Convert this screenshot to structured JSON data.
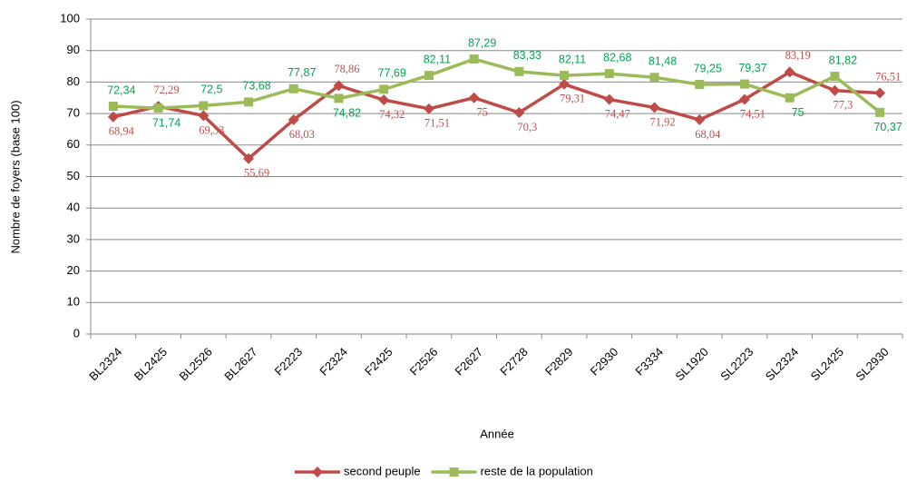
{
  "chart_data": {
    "type": "line",
    "x_label": "Année",
    "y_label": "Nombre de foyers (base 100)",
    "categories": [
      "BL2324",
      "BL2425",
      "BL2526",
      "BL2627",
      "F2223",
      "F2324",
      "F2425",
      "F2526",
      "F2627",
      "F2728",
      "F2829",
      "F2930",
      "F3334",
      "SL1920",
      "SL2223",
      "SL2324",
      "SL2425",
      "SL2930"
    ],
    "series": [
      {
        "name": "second peuple",
        "color": "#be4b48",
        "marker": "diamond",
        "values": [
          68.94,
          72.29,
          69.33,
          55.69,
          68.03,
          78.86,
          74.32,
          71.51,
          75,
          70.3,
          79.31,
          74.47,
          71.92,
          68.04,
          74.51,
          83.19,
          77.3,
          76.51
        ],
        "value_labels": [
          "68,94",
          "72,29",
          "69,33",
          "55,69",
          "68,03",
          "78,86",
          "74,32",
          "71,51",
          "75",
          "70,3",
          "79,31",
          "74,47",
          "71,92",
          "68,04",
          "74,51",
          "83,19",
          "77,3",
          "76,51"
        ]
      },
      {
        "name": "reste de la population",
        "color": "#9bbb59",
        "marker": "square",
        "values": [
          72.34,
          71.74,
          72.5,
          73.68,
          77.87,
          74.82,
          77.69,
          82.11,
          87.29,
          83.33,
          82.11,
          82.68,
          81.48,
          79.25,
          79.37,
          75,
          81.82,
          70.37
        ],
        "value_labels": [
          "72,34",
          "71,74",
          "72,5",
          "73,68",
          "77,87",
          "74,82",
          "77,69",
          "82,11",
          "87,29",
          "83,33",
          "82,11",
          "82,68",
          "81,48",
          "79,25",
          "79,37",
          "75",
          "81,82",
          "70,37"
        ]
      }
    ],
    "ylim": [
      0,
      100
    ],
    "yticks": [
      0,
      10,
      20,
      30,
      40,
      50,
      60,
      70,
      80,
      90,
      100
    ],
    "grid": true,
    "legend": "bottom"
  }
}
